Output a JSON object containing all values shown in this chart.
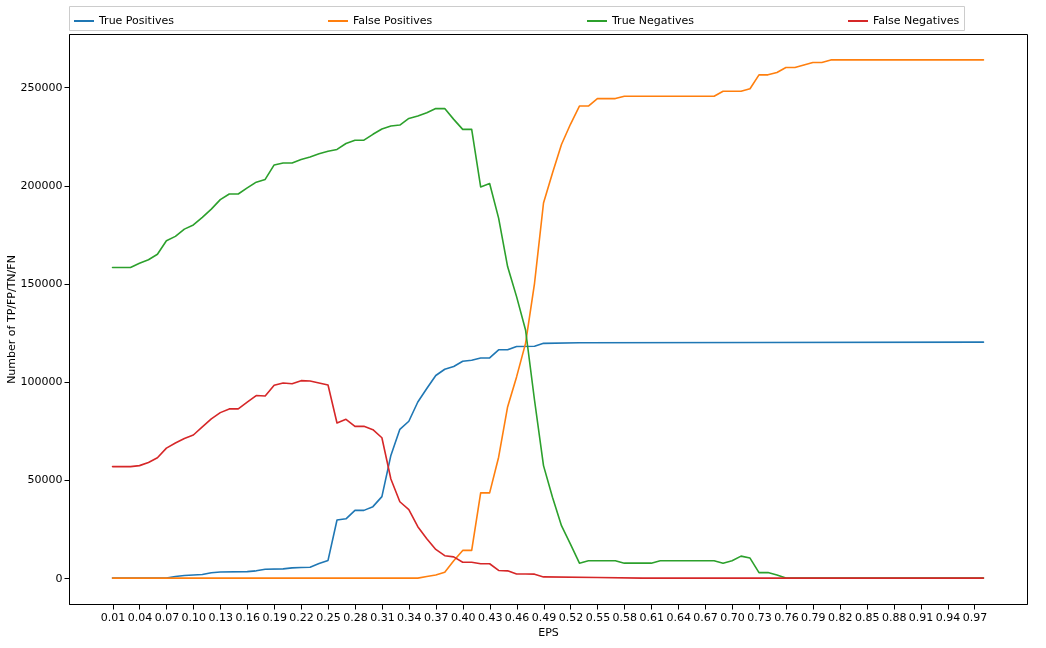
{
  "chart_data": {
    "type": "line",
    "xlabel": "EPS",
    "ylabel": "Number of TP/FP/TN/FN",
    "xlim": [
      -0.0385,
      1.0285
    ],
    "ylim": [
      -13200,
      277200
    ],
    "xticks": [
      0.01,
      0.04,
      0.07,
      {
        "value": 0.1,
        "label": "0.10"
      },
      0.13,
      0.16,
      0.19,
      0.22,
      0.25,
      0.28,
      0.31,
      0.34,
      0.37,
      {
        "value": 0.4,
        "label": "0.40"
      },
      0.43,
      0.46,
      0.49,
      0.52,
      0.55,
      0.58,
      0.61,
      0.64,
      0.67,
      {
        "value": 0.7,
        "label": "0.70"
      },
      0.73,
      0.76,
      0.79,
      0.82,
      0.85,
      0.88,
      0.91,
      0.94,
      0.97
    ],
    "yticks": [
      0,
      50000,
      100000,
      150000,
      200000,
      250000
    ],
    "grid": false,
    "legend": "top",
    "series": [
      {
        "name": "True Positives",
        "color": "#1f77b4",
        "x": [
          0.01,
          0.07,
          0.08,
          0.09,
          0.1,
          0.11,
          0.12,
          0.13,
          0.16,
          0.17,
          0.18,
          0.2,
          0.21,
          0.22,
          0.23,
          0.24,
          0.25,
          0.26,
          0.27,
          0.28,
          0.29,
          0.3,
          0.31,
          0.32,
          0.33,
          0.34,
          0.35,
          0.36,
          0.37,
          0.38,
          0.39,
          0.4,
          0.41,
          0.42,
          0.43,
          0.44,
          0.45,
          0.46,
          0.48,
          0.49,
          0.53,
          0.98
        ],
        "values": [
          0,
          0,
          800,
          1300,
          1600,
          1800,
          2700,
          3100,
          3300,
          3700,
          4500,
          4700,
          5200,
          5400,
          5500,
          7400,
          9000,
          29600,
          30200,
          34500,
          34500,
          36400,
          41500,
          62500,
          75800,
          79900,
          89700,
          96600,
          103200,
          106400,
          107800,
          110500,
          111000,
          112100,
          112200,
          116300,
          116300,
          118000,
          118100,
          119600,
          119900,
          120200
        ]
      },
      {
        "name": "False Positives",
        "color": "#ff7f0e",
        "x": [
          0.01,
          0.35,
          0.36,
          0.37,
          0.38,
          0.39,
          0.4,
          0.41,
          0.42,
          0.43,
          0.44,
          0.45,
          0.46,
          0.47,
          0.48,
          0.49,
          0.5,
          0.51,
          0.52,
          0.53,
          0.54,
          0.55,
          0.57,
          0.58,
          0.68,
          0.69,
          0.71,
          0.72,
          0.73,
          0.74,
          0.75,
          0.76,
          0.77,
          0.78,
          0.79,
          0.8,
          0.81,
          0.98
        ],
        "values": [
          0,
          0,
          800,
          1600,
          3000,
          8800,
          14100,
          14100,
          43400,
          43400,
          61600,
          87200,
          102500,
          119600,
          150200,
          191100,
          206400,
          220900,
          231200,
          240500,
          240500,
          244300,
          244300,
          245500,
          245500,
          248000,
          248000,
          249300,
          256400,
          256400,
          257600,
          260100,
          260100,
          261400,
          262700,
          262700,
          264000,
          264000
        ]
      },
      {
        "name": "True Negatives",
        "color": "#2ca02c",
        "x": [
          0.01,
          0.02,
          0.03,
          0.04,
          0.05,
          0.06,
          0.07,
          0.08,
          0.09,
          0.1,
          0.11,
          0.12,
          0.13,
          0.14,
          0.15,
          0.16,
          0.17,
          0.18,
          0.19,
          0.2,
          0.21,
          0.22,
          0.23,
          0.24,
          0.25,
          0.26,
          0.27,
          0.28,
          0.29,
          0.3,
          0.31,
          0.32,
          0.33,
          0.34,
          0.35,
          0.36,
          0.37,
          0.38,
          0.39,
          0.4,
          0.41,
          0.42,
          0.43,
          0.44,
          0.45,
          0.46,
          0.47,
          0.48,
          0.49,
          0.5,
          0.51,
          0.52,
          0.53,
          0.54,
          0.57,
          0.58,
          0.61,
          0.62,
          0.68,
          0.69,
          0.7,
          0.71,
          0.72,
          0.73,
          0.74,
          0.75,
          0.76,
          0.98
        ],
        "values": [
          158200,
          158200,
          158200,
          160400,
          162200,
          165000,
          171900,
          174100,
          177800,
          179900,
          183800,
          188000,
          192800,
          195700,
          195700,
          198800,
          201700,
          203100,
          210500,
          211500,
          211500,
          213300,
          214500,
          216200,
          217500,
          218400,
          221400,
          223100,
          223100,
          226100,
          228800,
          230300,
          230800,
          234200,
          235400,
          237100,
          239200,
          239200,
          233700,
          228600,
          228600,
          199300,
          201000,
          183400,
          158700,
          143400,
          126400,
          90600,
          57300,
          41200,
          26700,
          17300,
          7600,
          8800,
          8800,
          7600,
          7600,
          8800,
          8800,
          7600,
          8800,
          11200,
          10200,
          2800,
          2800,
          1600,
          0,
          0
        ]
      },
      {
        "name": "False Negatives",
        "color": "#d62728",
        "x": [
          0.01,
          0.02,
          0.03,
          0.04,
          0.05,
          0.06,
          0.07,
          0.08,
          0.09,
          0.1,
          0.11,
          0.12,
          0.13,
          0.14,
          0.15,
          0.16,
          0.17,
          0.18,
          0.19,
          0.2,
          0.21,
          0.22,
          0.23,
          0.24,
          0.25,
          0.26,
          0.27,
          0.28,
          0.29,
          0.3,
          0.31,
          0.32,
          0.33,
          0.34,
          0.35,
          0.36,
          0.37,
          0.38,
          0.39,
          0.4,
          0.41,
          0.42,
          0.43,
          0.44,
          0.45,
          0.46,
          0.47,
          0.48,
          0.49,
          0.55,
          0.6,
          0.98
        ],
        "values": [
          56800,
          56800,
          56800,
          57300,
          58900,
          61300,
          66200,
          68800,
          71100,
          72900,
          77000,
          81100,
          84300,
          86200,
          86200,
          89600,
          93000,
          92800,
          98200,
          99400,
          99000,
          100600,
          100400,
          99400,
          98400,
          79000,
          80900,
          77300,
          77300,
          75600,
          71500,
          50500,
          38900,
          34900,
          26200,
          20000,
          14600,
          11400,
          10800,
          8100,
          8100,
          7300,
          7300,
          3900,
          3700,
          2100,
          2100,
          2000,
          600,
          300,
          0,
          0
        ]
      }
    ]
  }
}
